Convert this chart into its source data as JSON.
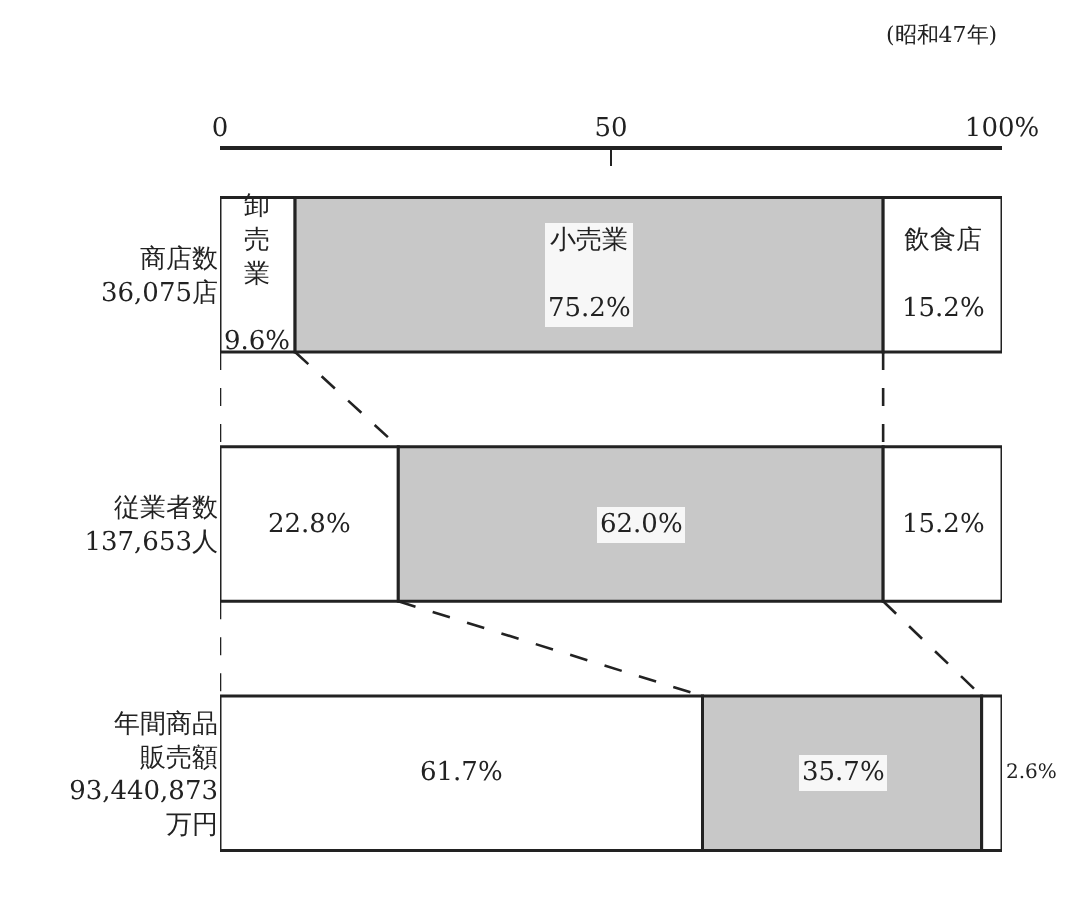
{
  "chart_data": {
    "type": "bar",
    "orientation": "horizontal",
    "stacked": true,
    "legend": false,
    "categories": [
      "商店数36,075店",
      "従業者数137,653人",
      "年間商品販売額93,440,873万円"
    ],
    "series": [
      {
        "name": "卸売業",
        "color": "#ffffff",
        "values": [
          9.6,
          22.8,
          61.7
        ],
        "value_labels": [
          "9.6%",
          "22.8%",
          "61.7%"
        ]
      },
      {
        "name": "小売業",
        "color": "#c8c8c8",
        "values": [
          75.2,
          62.0,
          35.7
        ],
        "value_labels": [
          "75.2%",
          "62.0%",
          "35.7%"
        ]
      },
      {
        "name": "飲食店",
        "color": "#ffffff",
        "values": [
          15.2,
          15.2,
          2.6
        ],
        "value_labels": [
          "15.2%",
          "15.2%",
          "2.6%"
        ]
      }
    ],
    "xlim": [
      0,
      100
    ],
    "xticks": [
      0,
      50,
      {
        "value": 100,
        "label": "100%"
      }
    ],
    "annotations": [
      "(昭和47年)"
    ]
  }
}
